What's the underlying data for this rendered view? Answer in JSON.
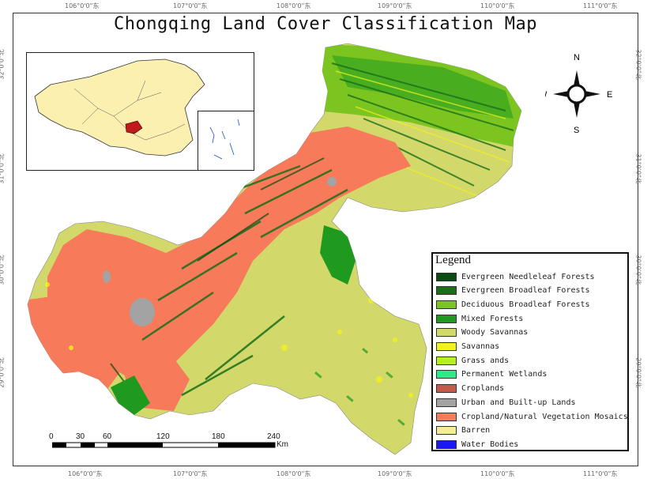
{
  "title": "Chongqing Land Cover Classification Map",
  "graticule": {
    "lon_labels": [
      "106°0'0\"东",
      "107°0'0\"东",
      "108°0'0\"东",
      "109°0'0\"东",
      "110°0'0\"东",
      "111°0'0\"东"
    ],
    "lat_labels": [
      "32°0'0\"北",
      "31°0'0\"北",
      "30°0'0\"北",
      "29°0'0\"北"
    ]
  },
  "compass": {
    "n": "N",
    "s": "S",
    "e": "E",
    "w": "W"
  },
  "legend": {
    "title": "Legend",
    "items": [
      {
        "label": "Evergreen Needleleaf Forests",
        "color": "#0b4a12"
      },
      {
        "label": "Evergreen Broadleaf Forests",
        "color": "#1a6f1a"
      },
      {
        "label": "Deciduous Broadleaf Forests",
        "color": "#7cc520"
      },
      {
        "label": "Mixed Forests",
        "color": "#1f9a1f"
      },
      {
        "label": "Woody Savannas",
        "color": "#d3d86a"
      },
      {
        "label": "Savannas",
        "color": "#f2f21c"
      },
      {
        "label": "Grass ands",
        "color": "#b6f01e"
      },
      {
        "label": "Permanent Wetlands",
        "color": "#2ee88a"
      },
      {
        "label": "Croplands",
        "color": "#c45a4a"
      },
      {
        "label": "Urban and Built-up Lands",
        "color": "#a3a3a3"
      },
      {
        "label": "Cropland/Natural Vegetation Mosaics",
        "color": "#f77a5a"
      },
      {
        "label": "Barren",
        "color": "#f5ec9a"
      },
      {
        "label": "Water Bodies",
        "color": "#1a1af0"
      }
    ]
  },
  "scale": {
    "ticks": [
      "0",
      "30",
      "60",
      "120",
      "180",
      "240"
    ],
    "unit": "Km"
  }
}
